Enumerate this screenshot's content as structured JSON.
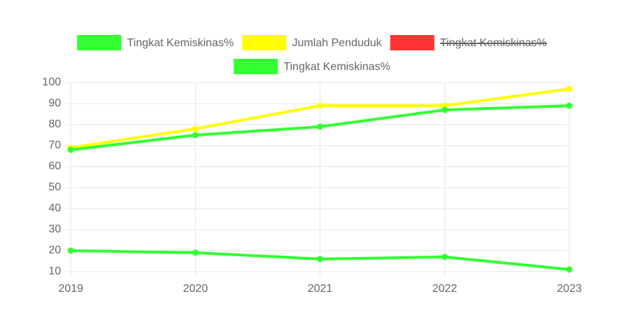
{
  "chart_data": {
    "type": "line",
    "categories": [
      "2019",
      "2020",
      "2021",
      "2022",
      "2023"
    ],
    "series": [
      {
        "name": "Tingkat Kemiskinas%",
        "color": "#33ff33",
        "values": [
          20,
          19,
          16,
          17,
          11
        ]
      },
      {
        "name": "Jumlah Penduduk",
        "color": "#ffff00",
        "values": [
          69,
          78,
          89,
          89,
          97
        ]
      },
      {
        "name": "Tingkat Kemiskinas%",
        "color": "#ff3333",
        "hidden": true,
        "values": [
          null,
          null,
          null,
          null,
          null
        ]
      },
      {
        "name": "Tingkat Kemiskinas%",
        "color": "#33ff33",
        "values": [
          68,
          75,
          79,
          87,
          89
        ]
      }
    ],
    "ylim": [
      10,
      100
    ],
    "yticks": [
      10,
      20,
      30,
      40,
      50,
      60,
      70,
      80,
      90,
      100
    ],
    "grid": true,
    "legend": "top"
  }
}
